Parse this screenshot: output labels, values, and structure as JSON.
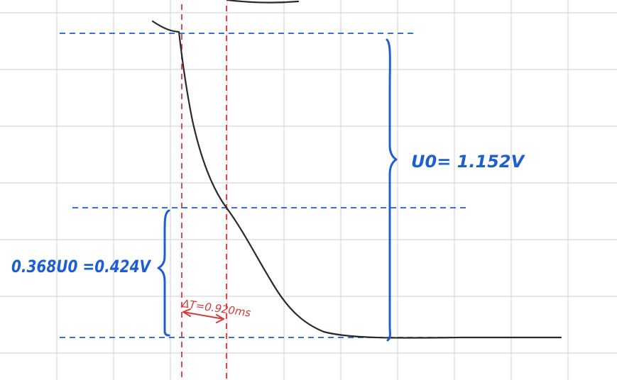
{
  "labels": {
    "u0_value": "U0= 1.152V",
    "fraction_value": "0.368U0 =0.424V",
    "delta_t": "ΔT=0.920ms"
  },
  "colors": {
    "grid": "#d7d7d7",
    "curve": "#2a2a2a",
    "blue": "#1d5fd1",
    "red": "#d43b3b"
  }
}
